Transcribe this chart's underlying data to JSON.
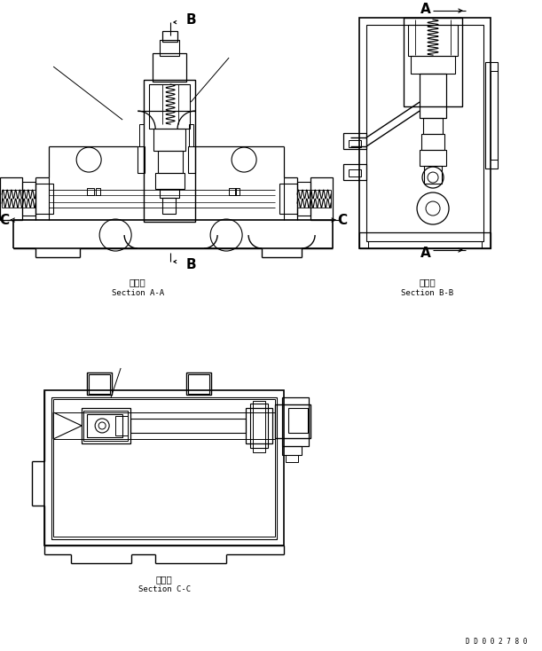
{
  "bg_color": "#ffffff",
  "lc": "#000000",
  "section_aa_label1": "断　面",
  "section_aa_label2": "Section A-A",
  "section_bb_label1": "断　面",
  "section_bb_label2": "Section B-B",
  "section_cc_label1": "断　面",
  "section_cc_label2": "Section C-C",
  "drawing_id": "D D 0 0 2 7 8 0"
}
